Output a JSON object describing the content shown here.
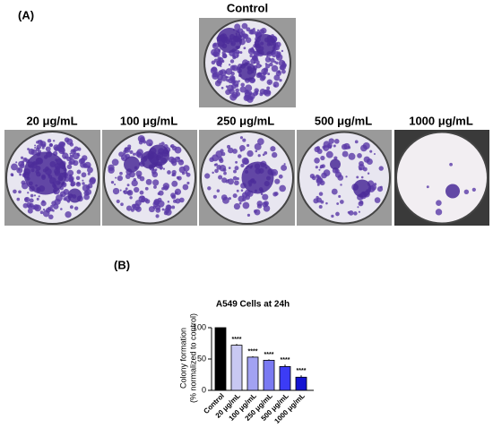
{
  "panel_a": {
    "label": "(A)",
    "control": "Control",
    "images": [
      "20 μg/mL",
      "100 μg/mL",
      "250 μg/mL",
      "500 μg/mL",
      "1000 μg/mL"
    ]
  },
  "panel_b": {
    "label": "(B)"
  },
  "chart_data": {
    "type": "bar",
    "title": "A549 Cells at 24h",
    "y_label": [
      "Colony formation",
      "(% normalized to control)"
    ],
    "categories": [
      "Control",
      "20 μg/mL",
      "100 μg/mL",
      "250 μg/mL",
      "500 μg/mL",
      "1000 μg/mL"
    ],
    "values": [
      100,
      72,
      53,
      48,
      38,
      21
    ],
    "errors": [
      0,
      2,
      1.5,
      1.5,
      3,
      3
    ],
    "colors": [
      "#000000",
      "#c8c8f2",
      "#a2a2f2",
      "#7a7af2",
      "#3c3cf5",
      "#1414d2"
    ],
    "annotations": [
      "****",
      "****",
      "****",
      "****",
      "****"
    ],
    "ylim": [
      0,
      100
    ],
    "yticks": [
      0,
      50,
      100
    ]
  }
}
